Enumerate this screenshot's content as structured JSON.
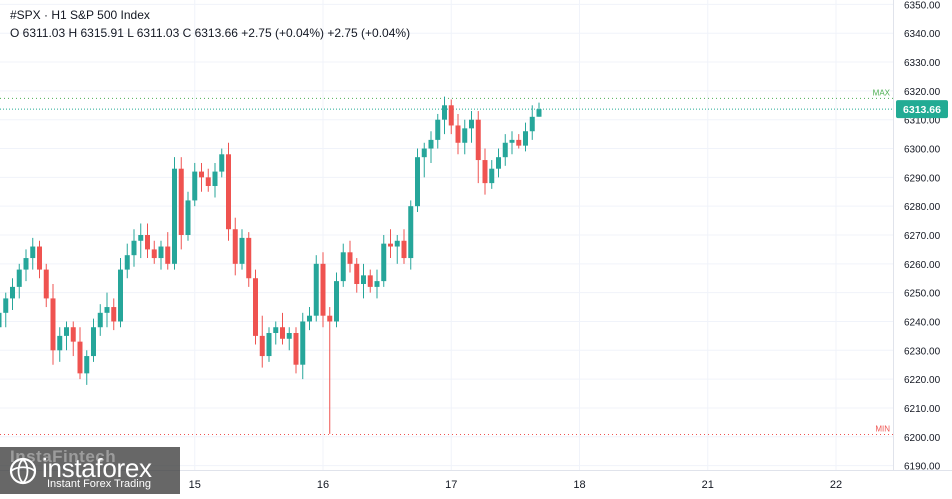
{
  "header": {
    "title": "#SPX · H1 S&P 500 Index",
    "ohlc": "O 6311.03 H 6315.91 L 6311.03 C 6313.66 +2.75 (+0.04%) +2.75 (+0.04%)"
  },
  "logo": {
    "ghost_text": "InstaFintech",
    "brand": "instaforex",
    "tagline": "Instant Forex Trading"
  },
  "chart_data": {
    "type": "candlestick",
    "symbol": "#SPX",
    "timeframe": "H1",
    "ylim": [
      6185,
      6355
    ],
    "y_ticks": [
      "6350.00",
      "6340.00",
      "6330.00",
      "6320.00",
      "6310.00",
      "6300.00",
      "6290.00",
      "6280.00",
      "6270.00",
      "6260.00",
      "6250.00",
      "6240.00",
      "6230.00",
      "6220.00",
      "6210.00",
      "6200.00",
      "6190.00"
    ],
    "x_ticks": [
      {
        "label": "15",
        "index": 29
      },
      {
        "label": "16",
        "index": 48
      },
      {
        "label": "17",
        "index": 67
      },
      {
        "label": "18",
        "index": 86
      },
      {
        "label": "21",
        "index": 105
      },
      {
        "label": "22",
        "index": 124
      }
    ],
    "last_price": {
      "value": 6313.66,
      "label": "6313.66"
    },
    "max_line": {
      "value": 6317.4,
      "label": "MAX"
    },
    "min_line": {
      "value": 6200.8,
      "label": "MIN"
    },
    "colors": {
      "up": "#26a69a",
      "down": "#ef5350",
      "last_price": "#22ab94",
      "max": "#4caf50",
      "min": "#ef5350",
      "axis_text": "#131722",
      "grid": "#f0f3fa"
    },
    "candles": [
      [
        6238,
        6246,
        6235,
        6243
      ],
      [
        6243,
        6250,
        6238,
        6248
      ],
      [
        6248,
        6255,
        6244,
        6252
      ],
      [
        6252,
        6260,
        6248,
        6258
      ],
      [
        6258,
        6265,
        6254,
        6262
      ],
      [
        6262,
        6269,
        6258,
        6266
      ],
      [
        6266,
        6268,
        6255,
        6258
      ],
      [
        6258,
        6260,
        6245,
        6248
      ],
      [
        6248,
        6253,
        6225,
        6230
      ],
      [
        6230,
        6238,
        6226,
        6235
      ],
      [
        6235,
        6240,
        6230,
        6238
      ],
      [
        6238,
        6240,
        6228,
        6233
      ],
      [
        6233,
        6238,
        6220,
        6222
      ],
      [
        6222,
        6230,
        6218,
        6228
      ],
      [
        6228,
        6241,
        6226,
        6238
      ],
      [
        6238,
        6246,
        6235,
        6243
      ],
      [
        6243,
        6250,
        6238,
        6245
      ],
      [
        6245,
        6248,
        6237,
        6240
      ],
      [
        6240,
        6262,
        6238,
        6258
      ],
      [
        6258,
        6267,
        6255,
        6263
      ],
      [
        6263,
        6272,
        6259,
        6268
      ],
      [
        6268,
        6274,
        6262,
        6270
      ],
      [
        6270,
        6274,
        6262,
        6265
      ],
      [
        6265,
        6268,
        6260,
        6262
      ],
      [
        6262,
        6268,
        6258,
        6266
      ],
      [
        6266,
        6271,
        6258,
        6260
      ],
      [
        6260,
        6297,
        6258,
        6293
      ],
      [
        6293,
        6297,
        6265,
        6270
      ],
      [
        6270,
        6285,
        6268,
        6282
      ],
      [
        6282,
        6295,
        6280,
        6292
      ],
      [
        6292,
        6295,
        6285,
        6290
      ],
      [
        6290,
        6293,
        6285,
        6287
      ],
      [
        6287,
        6295,
        6283,
        6292
      ],
      [
        6292,
        6300,
        6290,
        6298
      ],
      [
        6298,
        6302,
        6268,
        6272
      ],
      [
        6272,
        6276,
        6256,
        6260
      ],
      [
        6260,
        6272,
        6258,
        6269
      ],
      [
        6269,
        6271,
        6252,
        6255
      ],
      [
        6255,
        6258,
        6232,
        6235
      ],
      [
        6235,
        6242,
        6224,
        6228
      ],
      [
        6228,
        6238,
        6226,
        6236
      ],
      [
        6236,
        6240,
        6232,
        6238
      ],
      [
        6238,
        6243,
        6232,
        6234
      ],
      [
        6234,
        6238,
        6230,
        6236
      ],
      [
        6236,
        6238,
        6222,
        6225
      ],
      [
        6225,
        6243,
        6220,
        6240
      ],
      [
        6240,
        6245,
        6237,
        6242
      ],
      [
        6242,
        6263,
        6240,
        6260
      ],
      [
        6260,
        6264,
        6238,
        6242
      ],
      [
        6242,
        6245,
        6201,
        6240
      ],
      [
        6240,
        6257,
        6238,
        6254
      ],
      [
        6254,
        6267,
        6252,
        6264
      ],
      [
        6264,
        6268,
        6257,
        6260
      ],
      [
        6260,
        6262,
        6250,
        6253
      ],
      [
        6253,
        6260,
        6248,
        6256
      ],
      [
        6256,
        6258,
        6250,
        6252
      ],
      [
        6252,
        6258,
        6248,
        6254
      ],
      [
        6254,
        6270,
        6252,
        6267
      ],
      [
        6267,
        6272,
        6262,
        6266
      ],
      [
        6266,
        6270,
        6260,
        6268
      ],
      [
        6268,
        6272,
        6260,
        6262
      ],
      [
        6262,
        6282,
        6258,
        6280
      ],
      [
        6280,
        6300,
        6278,
        6297
      ],
      [
        6297,
        6302,
        6290,
        6300
      ],
      [
        6300,
        6306,
        6295,
        6303
      ],
      [
        6303,
        6312,
        6300,
        6310
      ],
      [
        6310,
        6318,
        6305,
        6315
      ],
      [
        6315,
        6317,
        6305,
        6308
      ],
      [
        6308,
        6312,
        6298,
        6302
      ],
      [
        6302,
        6310,
        6298,
        6307
      ],
      [
        6307,
        6313,
        6302,
        6310
      ],
      [
        6310,
        6313,
        6288,
        6296
      ],
      [
        6296,
        6300,
        6284,
        6288
      ],
      [
        6288,
        6296,
        6286,
        6293
      ],
      [
        6293,
        6300,
        6290,
        6297
      ],
      [
        6297,
        6305,
        6294,
        6302
      ],
      [
        6302,
        6306,
        6298,
        6303
      ],
      [
        6303,
        6305,
        6300,
        6301
      ],
      [
        6301,
        6309,
        6299,
        6306
      ],
      [
        6306,
        6315,
        6303,
        6311
      ],
      [
        6311.03,
        6315.91,
        6311.03,
        6313.66
      ]
    ]
  }
}
